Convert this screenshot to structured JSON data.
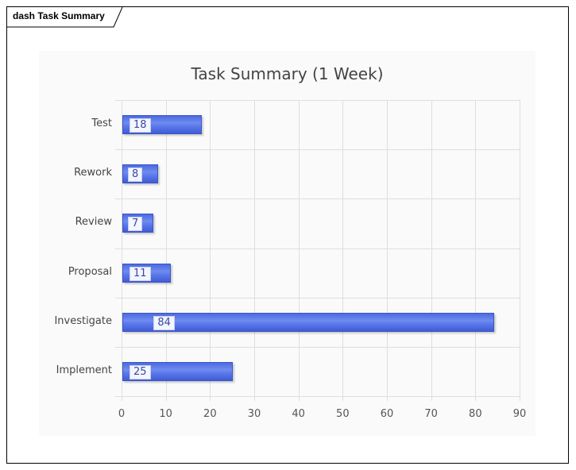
{
  "frame": {
    "tab_label": "dash Task Summary"
  },
  "chart_data": {
    "type": "bar",
    "orientation": "horizontal",
    "title": "Task Summary (1 Week)",
    "categories": [
      "Test",
      "Rework",
      "Review",
      "Proposal",
      "Investigate",
      "Implement"
    ],
    "values": [
      18,
      8,
      7,
      11,
      84,
      25
    ],
    "xlabel": "",
    "ylabel": "",
    "xlim": [
      0,
      90
    ],
    "xticks": [
      "0",
      "10",
      "20",
      "30",
      "40",
      "50",
      "60",
      "70",
      "80",
      "90"
    ],
    "grid": true,
    "data_labels": true,
    "bar_color": "#5370e6",
    "legend": null
  }
}
